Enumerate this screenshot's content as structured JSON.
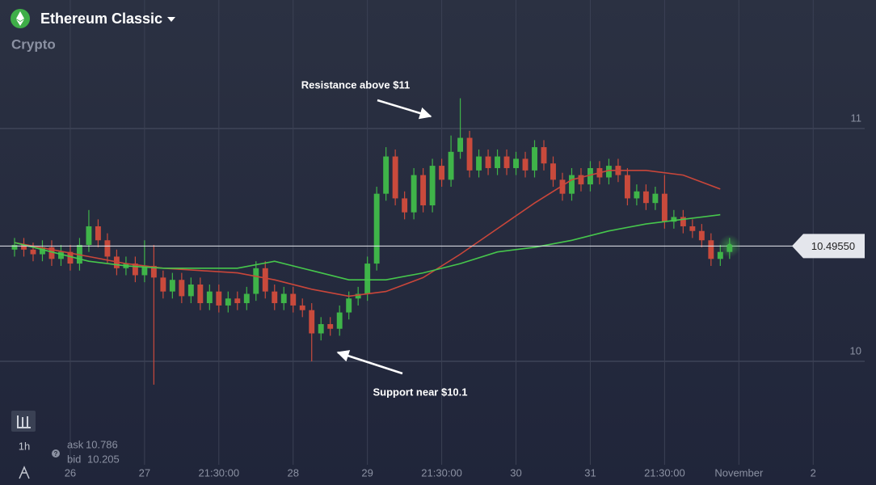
{
  "header": {
    "asset": "Ethereum Classic",
    "category": "Crypto"
  },
  "sidebar": {
    "timeframe": "1h"
  },
  "quote": {
    "ask_label": "ask",
    "ask": 10.786,
    "bid_label": "bid",
    "bid": 10.205
  },
  "chart_data": {
    "type": "candlestick",
    "annotations": [
      "Resistance above $11",
      "Support near $10.1"
    ],
    "xlim": [
      -22.7,
      260.3
    ],
    "ylim": [
      9.469,
      11.552
    ],
    "yticks": [
      10,
      11
    ],
    "xticks": [
      {
        "value": 0,
        "label": "26"
      },
      {
        "value": 24,
        "label": "27"
      },
      {
        "value": 48,
        "label": "21:30:00"
      },
      {
        "value": 72,
        "label": "28"
      },
      {
        "value": 96,
        "label": "29"
      },
      {
        "value": 120,
        "label": "21:30:00"
      },
      {
        "value": 144,
        "label": "30"
      },
      {
        "value": 168,
        "label": "31"
      },
      {
        "value": 192,
        "label": "21:30:00"
      },
      {
        "value": 216,
        "label": "November"
      },
      {
        "value": 240,
        "label": "2"
      }
    ],
    "grid": true,
    "up_color": "#3fb449",
    "down_color": "#c94a3c",
    "current_price": {
      "value": 10.4955,
      "label": "10.49550"
    },
    "x": [
      -18,
      -15,
      -12,
      -9,
      -6,
      -3,
      0,
      3,
      6,
      9,
      12,
      15,
      18,
      21,
      24,
      27,
      30,
      33,
      36,
      39,
      42,
      45,
      48,
      51,
      54,
      57,
      60,
      63,
      66,
      69,
      72,
      75,
      78,
      81,
      84,
      87,
      90,
      93,
      96,
      99,
      102,
      105,
      108,
      111,
      114,
      117,
      120,
      123,
      126,
      129,
      132,
      135,
      138,
      141,
      144,
      147,
      150,
      153,
      156,
      159,
      162,
      165,
      168,
      171,
      174,
      177,
      180,
      183,
      186,
      189,
      192,
      195,
      198,
      201,
      204,
      207,
      210,
      213
    ],
    "open": [
      10.48,
      10.5,
      10.48,
      10.46,
      10.49,
      10.44,
      10.47,
      10.42,
      10.5,
      10.58,
      10.52,
      10.45,
      10.4,
      10.42,
      10.37,
      10.41,
      10.36,
      10.3,
      10.35,
      10.28,
      10.33,
      10.25,
      10.3,
      10.24,
      10.27,
      10.25,
      10.29,
      10.4,
      10.3,
      10.25,
      10.29,
      10.24,
      10.22,
      10.12,
      10.16,
      10.14,
      10.21,
      10.27,
      10.29,
      10.42,
      10.72,
      10.88,
      10.7,
      10.64,
      10.8,
      10.67,
      10.84,
      10.78,
      10.9,
      10.96,
      10.82,
      10.88,
      10.83,
      10.88,
      10.83,
      10.87,
      10.82,
      10.92,
      10.85,
      10.78,
      10.72,
      10.8,
      10.76,
      10.83,
      10.79,
      10.84,
      10.8,
      10.7,
      10.73,
      10.68,
      10.72,
      10.6,
      10.62,
      10.58,
      10.56,
      10.52,
      10.44,
      10.47
    ],
    "high": [
      10.53,
      10.53,
      10.51,
      10.52,
      10.52,
      10.5,
      10.5,
      10.53,
      10.65,
      10.61,
      10.55,
      10.48,
      10.45,
      10.45,
      10.52,
      10.5,
      10.39,
      10.38,
      10.38,
      10.36,
      10.36,
      10.33,
      10.33,
      10.3,
      10.3,
      10.32,
      10.43,
      10.43,
      10.33,
      10.32,
      10.32,
      10.27,
      10.25,
      10.19,
      10.19,
      10.24,
      10.3,
      10.32,
      10.45,
      10.75,
      10.92,
      10.91,
      10.73,
      10.83,
      10.83,
      10.87,
      10.87,
      10.97,
      11.13,
      10.99,
      10.91,
      10.91,
      10.91,
      10.91,
      10.9,
      10.9,
      10.95,
      10.95,
      10.88,
      10.81,
      10.83,
      10.83,
      10.86,
      10.86,
      10.87,
      10.87,
      10.83,
      10.76,
      10.76,
      10.75,
      10.8,
      10.65,
      10.65,
      10.61,
      10.59,
      10.55,
      10.5,
      10.53
    ],
    "low": [
      10.45,
      10.45,
      10.43,
      10.43,
      10.41,
      10.41,
      10.39,
      10.39,
      10.47,
      10.49,
      10.42,
      10.37,
      10.37,
      10.34,
      10.34,
      9.9,
      10.27,
      10.27,
      10.25,
      10.25,
      10.22,
      10.22,
      10.21,
      10.21,
      10.22,
      10.22,
      10.26,
      10.27,
      10.22,
      10.22,
      10.21,
      10.19,
      10.0,
      10.09,
      10.11,
      10.11,
      10.18,
      10.24,
      10.26,
      10.39,
      10.69,
      10.67,
      10.61,
      10.61,
      10.64,
      10.64,
      10.75,
      10.75,
      10.87,
      10.79,
      10.79,
      10.8,
      10.8,
      10.8,
      10.8,
      10.79,
      10.79,
      10.82,
      10.75,
      10.69,
      10.69,
      10.73,
      10.73,
      10.76,
      10.76,
      10.77,
      10.67,
      10.67,
      10.65,
      10.65,
      10.57,
      10.57,
      10.55,
      10.53,
      10.49,
      10.41,
      10.41,
      10.44
    ],
    "close": [
      10.5,
      10.48,
      10.46,
      10.49,
      10.44,
      10.47,
      10.42,
      10.5,
      10.58,
      10.52,
      10.45,
      10.4,
      10.42,
      10.37,
      10.41,
      10.36,
      10.3,
      10.35,
      10.28,
      10.33,
      10.25,
      10.3,
      10.24,
      10.27,
      10.25,
      10.29,
      10.4,
      10.3,
      10.25,
      10.29,
      10.24,
      10.22,
      10.12,
      10.16,
      10.14,
      10.21,
      10.27,
      10.29,
      10.42,
      10.72,
      10.88,
      10.7,
      10.64,
      10.8,
      10.67,
      10.84,
      10.78,
      10.9,
      10.96,
      10.82,
      10.88,
      10.83,
      10.88,
      10.83,
      10.87,
      10.82,
      10.92,
      10.85,
      10.78,
      10.72,
      10.8,
      10.76,
      10.83,
      10.79,
      10.84,
      10.8,
      10.7,
      10.73,
      10.68,
      10.72,
      10.6,
      10.62,
      10.58,
      10.56,
      10.52,
      10.44,
      10.47,
      10.5
    ],
    "ma_x": [
      -18,
      -6,
      6,
      18,
      30,
      42,
      54,
      66,
      78,
      90,
      102,
      114,
      126,
      138,
      150,
      162,
      174,
      186,
      198,
      210
    ],
    "moving_averages": [
      {
        "color": "#c9463a",
        "values": [
          10.51,
          10.48,
          10.45,
          10.42,
          10.4,
          10.39,
          10.38,
          10.35,
          10.31,
          10.28,
          10.3,
          10.36,
          10.46,
          10.57,
          10.68,
          10.78,
          10.82,
          10.82,
          10.8,
          10.74
        ]
      },
      {
        "color": "#46c64c",
        "values": [
          10.51,
          10.47,
          10.43,
          10.41,
          10.4,
          10.4,
          10.4,
          10.43,
          10.39,
          10.35,
          10.35,
          10.38,
          10.42,
          10.47,
          10.49,
          10.52,
          10.56,
          10.59,
          10.61,
          10.63
        ]
      }
    ]
  }
}
